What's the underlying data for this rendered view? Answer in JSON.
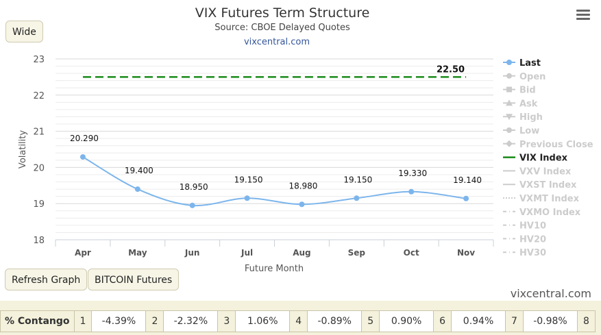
{
  "buttons": {
    "wide": "Wide",
    "refresh": "Refresh Graph",
    "bitcoin": "BITCOIN Futures"
  },
  "site_credit": "vixcentral.com",
  "contango": {
    "label": "% Contango",
    "cells": [
      {
        "month": "1",
        "value": "-4.39%"
      },
      {
        "month": "2",
        "value": "-2.32%"
      },
      {
        "month": "3",
        "value": "1.06%"
      },
      {
        "month": "4",
        "value": "-0.89%"
      },
      {
        "month": "5",
        "value": "0.90%"
      },
      {
        "month": "6",
        "value": "0.94%"
      },
      {
        "month": "7",
        "value": "-0.98%"
      },
      {
        "month": "8",
        "value": ""
      }
    ]
  },
  "chart_data": {
    "type": "line",
    "title": "VIX Futures Term Structure",
    "subtitle": "Source: CBOE Delayed Quotes",
    "credit": "vixcentral.com",
    "xlabel": "Future Month",
    "ylabel": "Volatility",
    "ylim": [
      18,
      23
    ],
    "yticks": [
      18,
      19,
      20,
      21,
      22,
      23
    ],
    "grid": true,
    "legend_position": "right",
    "categories": [
      "Apr",
      "May",
      "Jun",
      "Jul",
      "Aug",
      "Sep",
      "Oct",
      "Nov"
    ],
    "series": [
      {
        "name": "Last",
        "color": "#7cb5ec",
        "values": [
          20.29,
          19.4,
          18.95,
          19.15,
          18.98,
          19.15,
          19.33,
          19.14
        ],
        "labels": [
          "20.290",
          "19.400",
          "18.950",
          "19.150",
          "18.980",
          "19.150",
          "19.330",
          "19.140"
        ]
      },
      {
        "name": "VIX Index",
        "color": "#1a8a1a",
        "values": [
          22.5,
          22.5,
          22.5,
          22.5,
          22.5,
          22.5,
          22.5,
          22.5
        ],
        "end_label": "22.50"
      }
    ],
    "legend": [
      {
        "name": "Last",
        "marker": "circle",
        "active": true,
        "color": "#7cb5ec"
      },
      {
        "name": "Open",
        "marker": "circle",
        "active": false
      },
      {
        "name": "Bid",
        "marker": "square",
        "active": false
      },
      {
        "name": "Ask",
        "marker": "triangle-up",
        "active": false
      },
      {
        "name": "High",
        "marker": "triangle-down",
        "active": false
      },
      {
        "name": "Low",
        "marker": "circle",
        "active": false
      },
      {
        "name": "Previous Close",
        "marker": "diamond",
        "active": false
      },
      {
        "name": "VIX Index",
        "marker": "line-solid",
        "active": true,
        "color": "#1a8a1a"
      },
      {
        "name": "VXV Index",
        "marker": "line-solid",
        "active": false
      },
      {
        "name": "VXST Index",
        "marker": "line-solid",
        "active": false
      },
      {
        "name": "VXMT Index",
        "marker": "line-dotted",
        "active": false
      },
      {
        "name": "VXMO Index",
        "marker": "line-dashdot",
        "active": false
      },
      {
        "name": "HV10",
        "marker": "line-dashdot",
        "active": false
      },
      {
        "name": "HV20",
        "marker": "line-dashdot",
        "active": false
      },
      {
        "name": "HV30",
        "marker": "line-dashdot",
        "active": false
      }
    ]
  }
}
